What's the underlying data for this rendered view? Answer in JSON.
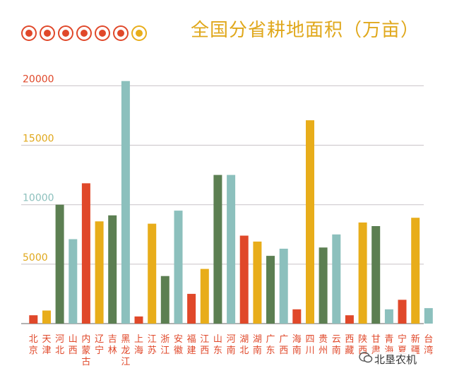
{
  "title": "全国分省耕地面积（万亩）",
  "watermark": "北垦农机",
  "colors": {
    "red": "#e0482a",
    "yellow": "#e8ad1a",
    "green": "#5c7f52",
    "teal": "#8cc0bd",
    "grid": "#c9c3c8",
    "baseline": "#999999",
    "label": "#e0482a"
  },
  "dots": [
    {
      "color": "#e0482a"
    },
    {
      "color": "#e0482a"
    },
    {
      "color": "#e0482a"
    },
    {
      "color": "#e0482a"
    },
    {
      "color": "#e0482a"
    },
    {
      "color": "#e0482a"
    },
    {
      "color": "#e8ad1a"
    }
  ],
  "chart_data": {
    "type": "bar",
    "title": "全国分省耕地面积（万亩）",
    "xlabel": "",
    "ylabel": "",
    "ylim": [
      0,
      24000
    ],
    "grid": true,
    "yticks": [
      {
        "value": 5000,
        "label": "5000",
        "color": "#e0a81c"
      },
      {
        "value": 10000,
        "label": "10000",
        "color": "#8cc0bd"
      },
      {
        "value": 15000,
        "label": "15000",
        "color": "#e0a81c"
      },
      {
        "value": 20000,
        "label": "20000",
        "color": "#e0482a"
      }
    ],
    "categories": [
      "北京",
      "天津",
      "河北",
      "山西",
      "内蒙古",
      "辽宁",
      "吉林",
      "黑龙江",
      "上海",
      "江苏",
      "浙江",
      "安徽",
      "福建",
      "江西",
      "山东",
      "河南",
      "湖北",
      "湖南",
      "广东",
      "广西",
      "海南",
      "四川",
      "贵州",
      "云南",
      "西藏",
      "陕西",
      "甘肃",
      "青海",
      "宁夏",
      "新疆",
      "台湾"
    ],
    "values": [
      700,
      1100,
      10000,
      7100,
      11800,
      8600,
      9100,
      20400,
      600,
      8400,
      4000,
      9500,
      2500,
      4600,
      12500,
      12500,
      7400,
      6900,
      5700,
      6300,
      1200,
      17100,
      6400,
      7500,
      700,
      8500,
      8200,
      1200,
      2000,
      8900,
      1300
    ],
    "bar_colors": [
      "red",
      "yellow",
      "green",
      "teal",
      "red",
      "yellow",
      "green",
      "teal",
      "red",
      "yellow",
      "green",
      "teal",
      "red",
      "yellow",
      "green",
      "teal",
      "red",
      "yellow",
      "green",
      "teal",
      "red",
      "yellow",
      "green",
      "teal",
      "red",
      "yellow",
      "green",
      "teal",
      "red",
      "yellow",
      "teal"
    ]
  }
}
